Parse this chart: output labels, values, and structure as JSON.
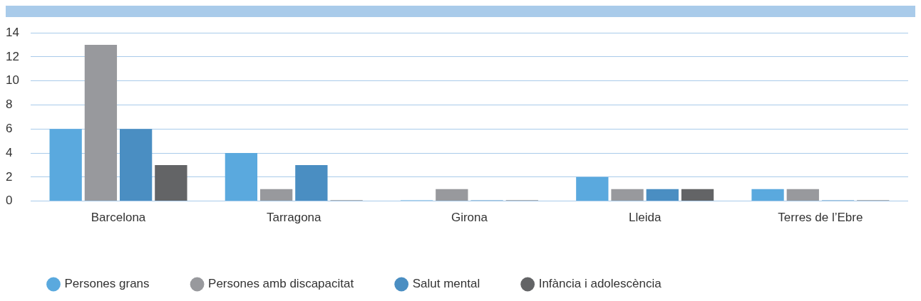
{
  "chart_data": {
    "type": "bar",
    "categories": [
      "Barcelona",
      "Tarragona",
      "Girona",
      "Lleida",
      "Terres de l’Ebre"
    ],
    "series": [
      {
        "name": "Persones grans",
        "color": "#5aa9de",
        "values": [
          6,
          4,
          0,
          2,
          1
        ]
      },
      {
        "name": "Persones amb discapacitat",
        "color": "#98999d",
        "values": [
          13,
          1,
          1,
          1,
          1
        ]
      },
      {
        "name": "Salut mental",
        "color": "#4a8ec2",
        "values": [
          6,
          3,
          0,
          1,
          0
        ]
      },
      {
        "name": "Infància i adolescència",
        "color": "#636466",
        "values": [
          3,
          0,
          0,
          1,
          0
        ]
      }
    ],
    "ylim": [
      0,
      14
    ],
    "yticks": [
      0,
      2,
      4,
      6,
      8,
      10,
      12,
      14
    ],
    "grid": "y",
    "legend": "bottom"
  }
}
